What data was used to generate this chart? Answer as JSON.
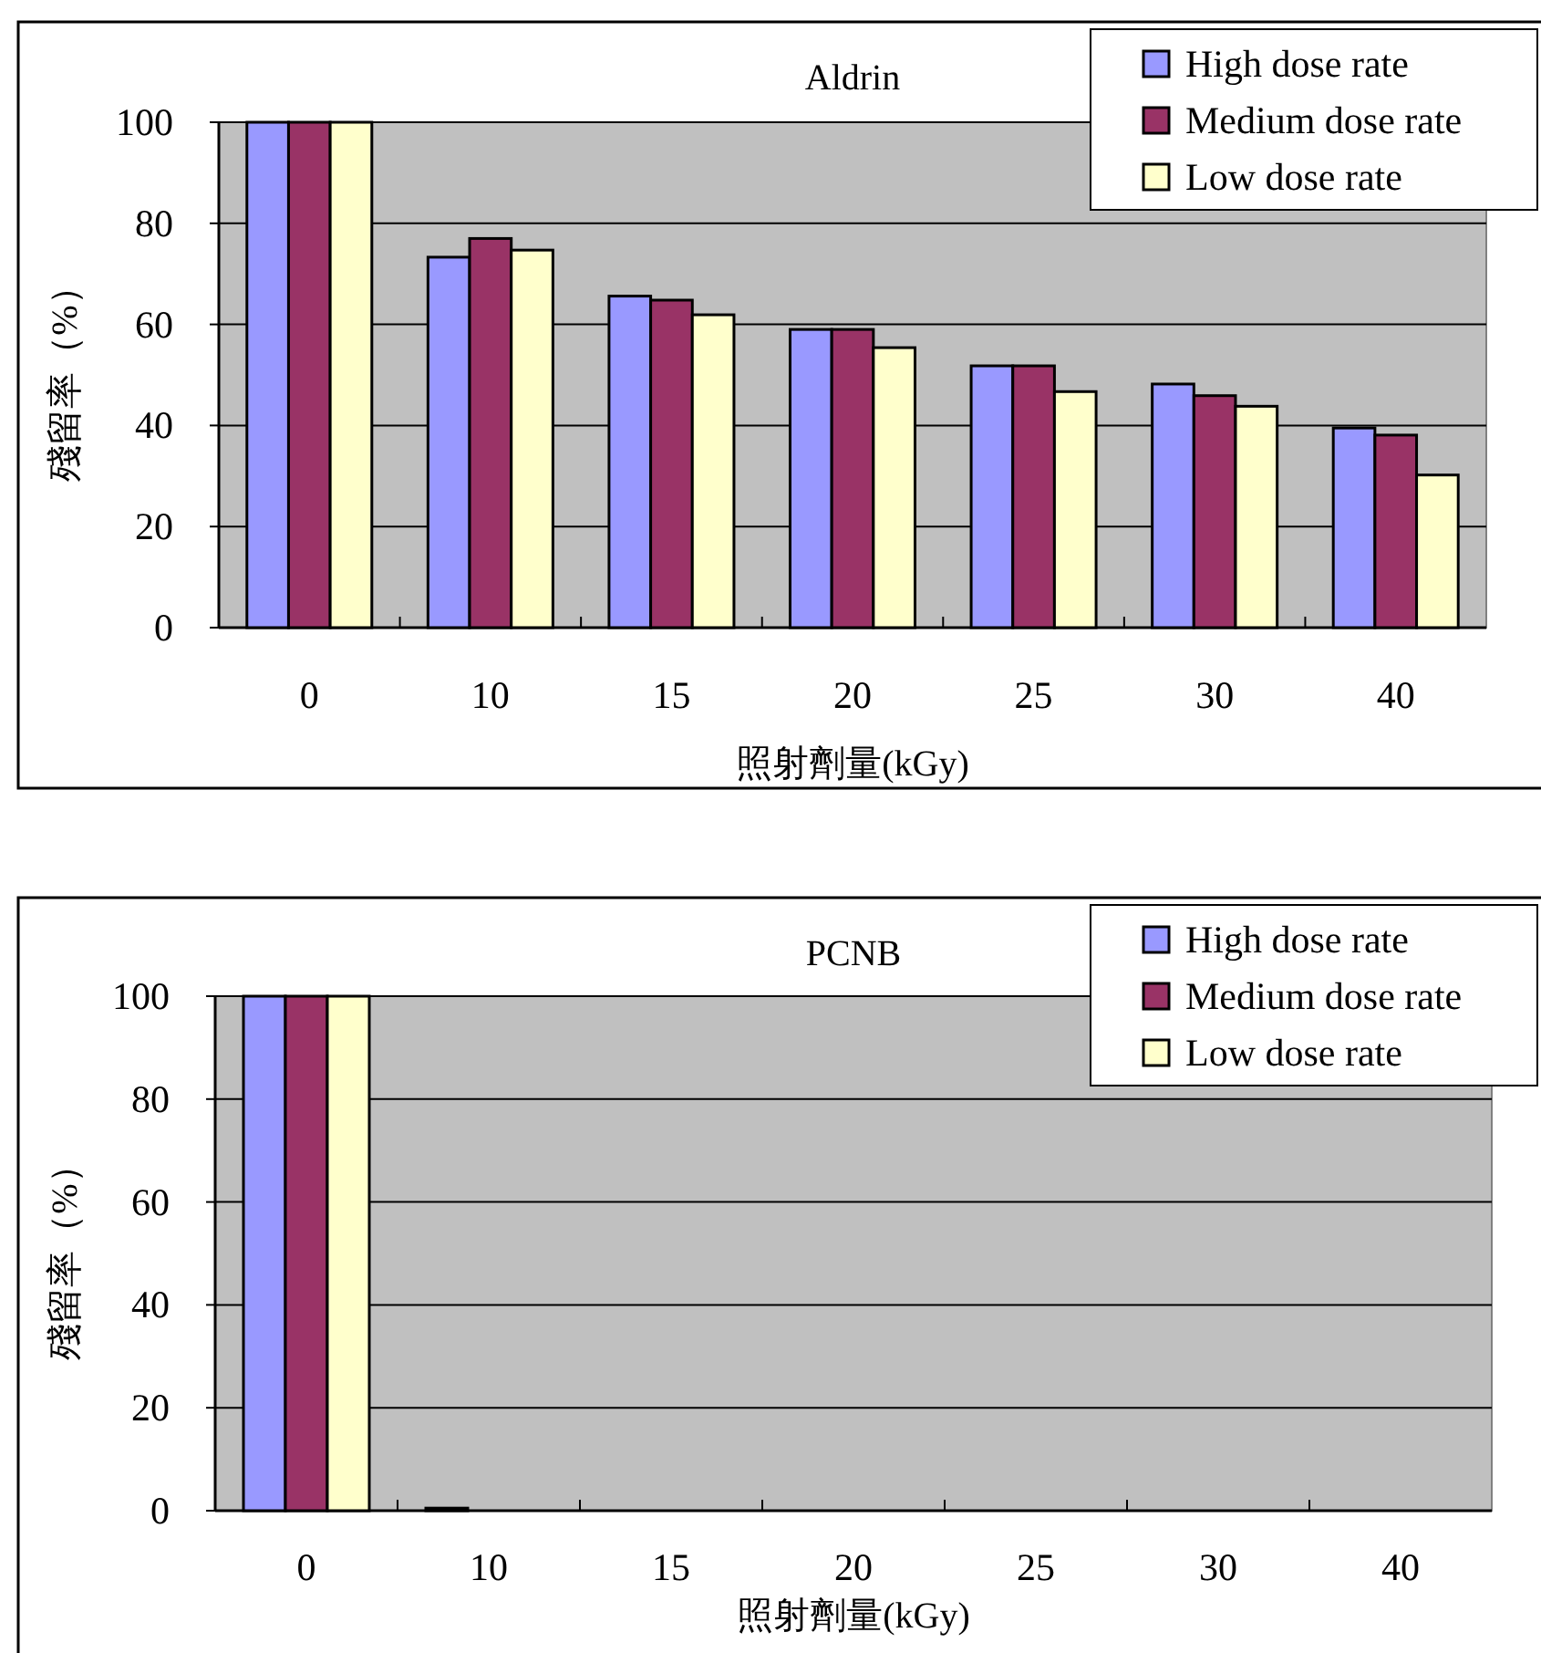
{
  "chart_data": [
    {
      "type": "bar",
      "title": "Aldrin",
      "xlabel": "照射劑量(kGy)",
      "ylabel": "殘留率（%）",
      "categories": [
        "0",
        "10",
        "15",
        "20",
        "25",
        "30",
        "40"
      ],
      "ylim": [
        0,
        100
      ],
      "yticks": [
        0,
        20,
        40,
        60,
        80,
        100
      ],
      "grid": "y",
      "legend": "top right",
      "series": [
        {
          "name": "High dose rate",
          "color": "#9999ff",
          "values": [
            100,
            73.3,
            65.6,
            59,
            51.8,
            48.2,
            39.5
          ]
        },
        {
          "name": "Medium dose rate",
          "color": "#993366",
          "values": [
            100,
            77,
            64.8,
            59,
            51.8,
            45.9,
            38.1
          ]
        },
        {
          "name": "Low dose rate",
          "color": "#ffffcc",
          "values": [
            100,
            74.7,
            61.9,
            55.4,
            46.7,
            43.8,
            30.2
          ]
        }
      ]
    },
    {
      "type": "bar",
      "title": "PCNB",
      "xlabel": "照射劑量(kGy)",
      "ylabel": "殘留率（%）",
      "categories": [
        "0",
        "10",
        "15",
        "20",
        "25",
        "30",
        "40"
      ],
      "ylim": [
        0,
        100
      ],
      "yticks": [
        0,
        20,
        40,
        60,
        80,
        100
      ],
      "grid": "y",
      "legend": "top right",
      "series": [
        {
          "name": "High dose rate",
          "color": "#9999ff",
          "values": [
            100,
            0.5,
            0,
            0,
            0,
            0,
            0
          ]
        },
        {
          "name": "Medium dose rate",
          "color": "#993366",
          "values": [
            100,
            0,
            0,
            0,
            0,
            0,
            0
          ]
        },
        {
          "name": "Low dose rate",
          "color": "#ffffcc",
          "values": [
            100,
            0,
            0,
            0,
            0,
            0,
            0
          ]
        }
      ]
    }
  ]
}
